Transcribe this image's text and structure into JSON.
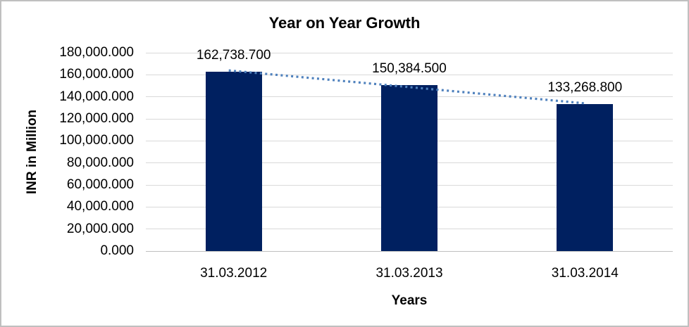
{
  "chart_data": {
    "type": "bar",
    "title": "Year on Year Growth",
    "xlabel": "Years",
    "ylabel": "INR in Million",
    "categories": [
      "31.03.2012",
      "31.03.2013",
      "31.03.2014"
    ],
    "values": [
      162738.7,
      150384.5,
      133268.8
    ],
    "value_labels": [
      "162,738.700",
      "150,384.500",
      "133,268.800"
    ],
    "ylim": [
      0,
      180000
    ],
    "ytick_step": 20000,
    "ytick_labels": [
      "180,000.000",
      "160,000.000",
      "140,000.000",
      "120,000.000",
      "100,000.000",
      "80,000.000",
      "60,000.000",
      "40,000.000",
      "20,000.000",
      "0.000"
    ],
    "grid": true,
    "legend": false,
    "trendline": true,
    "colors": {
      "bar": "#002060",
      "trendline": "#4f81bd",
      "gridline": "#d9d9d9",
      "baseline": "#bfbfbf",
      "text": "#000000",
      "frame_border": "#bfbfbf",
      "background": "#ffffff"
    }
  }
}
